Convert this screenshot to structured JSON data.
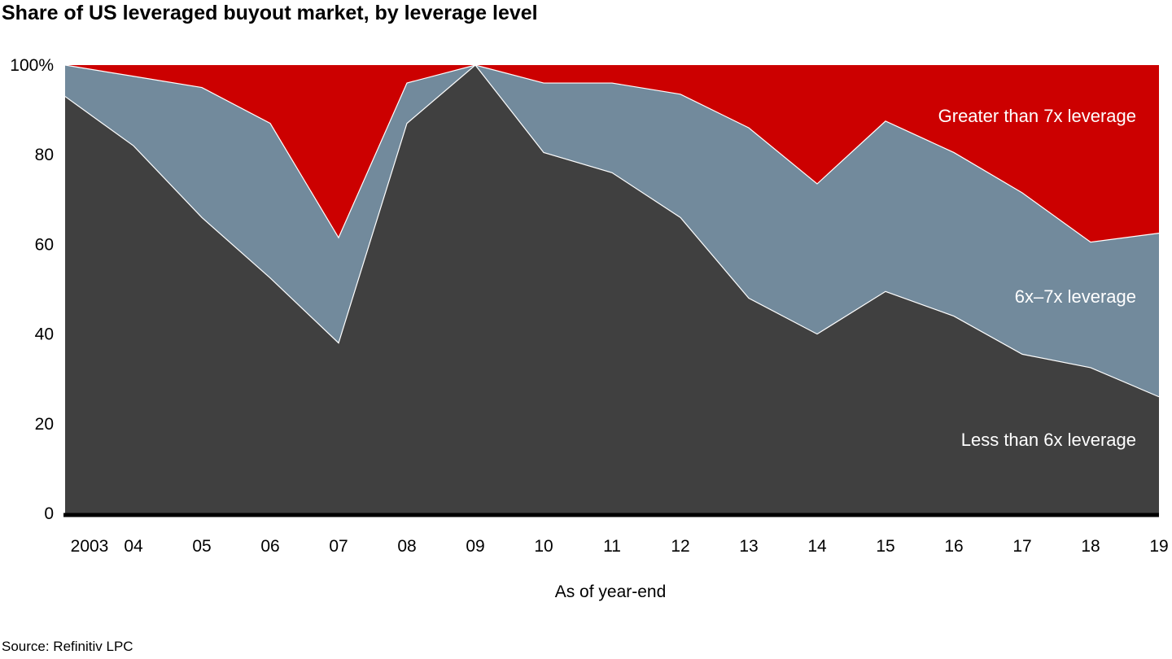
{
  "title": "Share of US leveraged buyout market, by leverage level",
  "source": "Source: Refinitiv LPC",
  "chart_data": {
    "type": "area",
    "stacked": true,
    "title": "Share of US leveraged buyout market, by leverage level",
    "xlabel": "As of year-end",
    "ylabel": "",
    "ylim": [
      0,
      100
    ],
    "y_ticks": [
      "0",
      "20",
      "40",
      "60",
      "80",
      "100%"
    ],
    "y_tick_values": [
      0,
      20,
      40,
      60,
      80,
      100
    ],
    "categories": [
      "2003",
      "04",
      "05",
      "06",
      "07",
      "08",
      "09",
      "10",
      "11",
      "12",
      "13",
      "14",
      "15",
      "16",
      "17",
      "18",
      "19"
    ],
    "series": [
      {
        "name": "Less than 6x leverage",
        "color": "#404040",
        "values": [
          93,
          82,
          66,
          52.5,
          38,
          87,
          100,
          80.5,
          76,
          66,
          48,
          40,
          49.5,
          44,
          35.5,
          32.5,
          26
        ]
      },
      {
        "name": "6x–7x leverage",
        "color": "#728a9c",
        "values": [
          7,
          15.5,
          29,
          34.5,
          23.5,
          9,
          0,
          15.5,
          20,
          27.5,
          38,
          33.5,
          38,
          36.5,
          36,
          28,
          36.5
        ]
      },
      {
        "name": "Greater than 7x leverage",
        "color": "#cc0000",
        "values": [
          0,
          2.5,
          5,
          13,
          38.5,
          4,
          0,
          4,
          4,
          6.5,
          14,
          26.5,
          12.5,
          19.5,
          28.5,
          39.5,
          37.5
        ]
      }
    ],
    "grid": false,
    "legend": "inline labels on areas, right side"
  }
}
